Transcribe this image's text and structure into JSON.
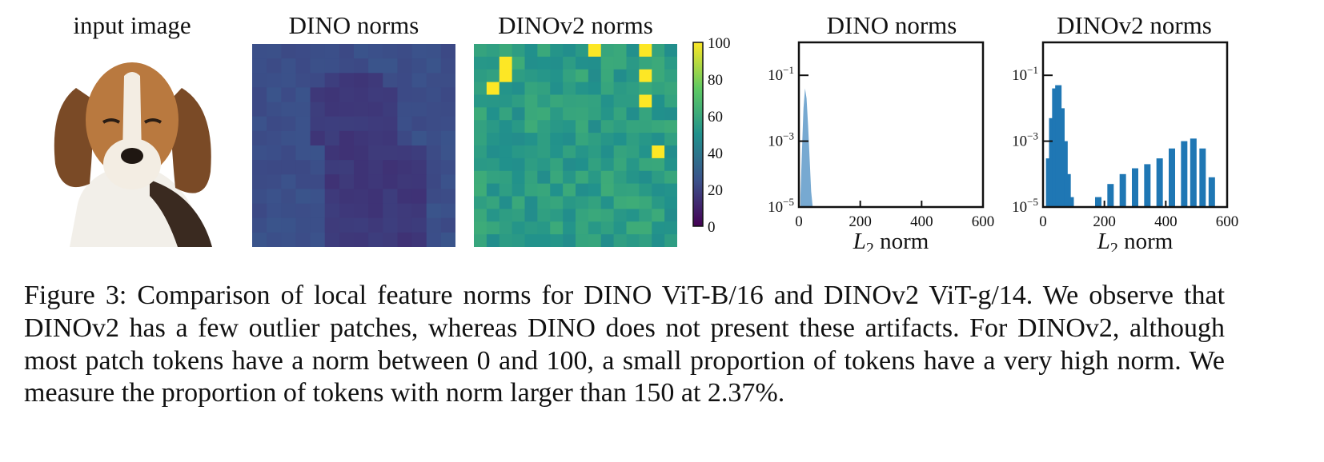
{
  "panels": {
    "input": {
      "title": "input image"
    },
    "dino_heatmap": {
      "title": "DINO norms"
    },
    "dinov2_heatmap": {
      "title": "DINOv2 norms"
    },
    "colorbar": {
      "ticks": [
        "100",
        "80",
        "60",
        "40",
        "20",
        "0"
      ]
    },
    "dino_hist": {
      "title": "DINO norms"
    },
    "dinov2_hist": {
      "title": "DINOv2 norms"
    }
  },
  "caption": {
    "label": "Figure 3:",
    "text": "Comparison of local feature norms for DINO ViT-B/16 and DINOv2 ViT-g/14. We observe that DINOv2 has a few outlier patches, whereas DINO does not present these artifacts. For DINOv2, although most patch tokens have a norm between 0 and 100, a small proportion of tokens have a very high norm. We measure the proportion of tokens with norm larger than 150 at 2.37%."
  },
  "colors": {
    "viridis_dark": "#440154",
    "viridis_mid": "#21918c",
    "viridis_yellow": "#fde725",
    "hist_blue": "#1f77b4"
  },
  "chart_data": [
    {
      "type": "heatmap",
      "title": "DINO norms",
      "colorscale": "viridis",
      "zlim": [
        0,
        100
      ],
      "description_values": "all patches low norm (approx. 10-25)"
    },
    {
      "type": "heatmap",
      "title": "DINOv2 norms",
      "colorscale": "viridis",
      "zlim": [
        0,
        100
      ],
      "outlier_patches": 8
    },
    {
      "type": "area",
      "title": "DINO norms",
      "xlabel": "L2 norm",
      "xlim": [
        0,
        600
      ],
      "ylim": [
        1e-05,
        1
      ],
      "yscale": "log",
      "xticks": [
        "0",
        "200",
        "400",
        "600"
      ],
      "yticks": [
        "10^-1",
        "10^-3",
        "10^-5"
      ],
      "x": [
        5,
        10,
        15,
        20,
        25,
        30,
        35,
        40,
        45
      ],
      "y": [
        2e-05,
        0.0005,
        0.01,
        0.04,
        0.02,
        0.003,
        0.0003,
        3e-05,
        1e-05
      ]
    },
    {
      "type": "bar",
      "title": "DINOv2 norms",
      "xlabel": "L2 norm",
      "xlim": [
        0,
        600
      ],
      "ylim": [
        1e-05,
        1
      ],
      "yscale": "log",
      "xticks": [
        "0",
        "200",
        "400",
        "600"
      ],
      "yticks": [
        "10^-1",
        "10^-3",
        "10^-5"
      ],
      "x": [
        20,
        30,
        40,
        50,
        60,
        70,
        80,
        90,
        180,
        220,
        260,
        300,
        340,
        380,
        420,
        460,
        490,
        520,
        550,
        570
      ],
      "y": [
        0.0003,
        0.005,
        0.04,
        0.05,
        0.01,
        0.001,
        0.0001,
        2e-05,
        2e-05,
        5e-05,
        0.0001,
        0.00015,
        0.0002,
        0.0003,
        0.0006,
        0.001,
        0.0012,
        0.0006,
        8e-05,
        1e-05
      ]
    }
  ]
}
